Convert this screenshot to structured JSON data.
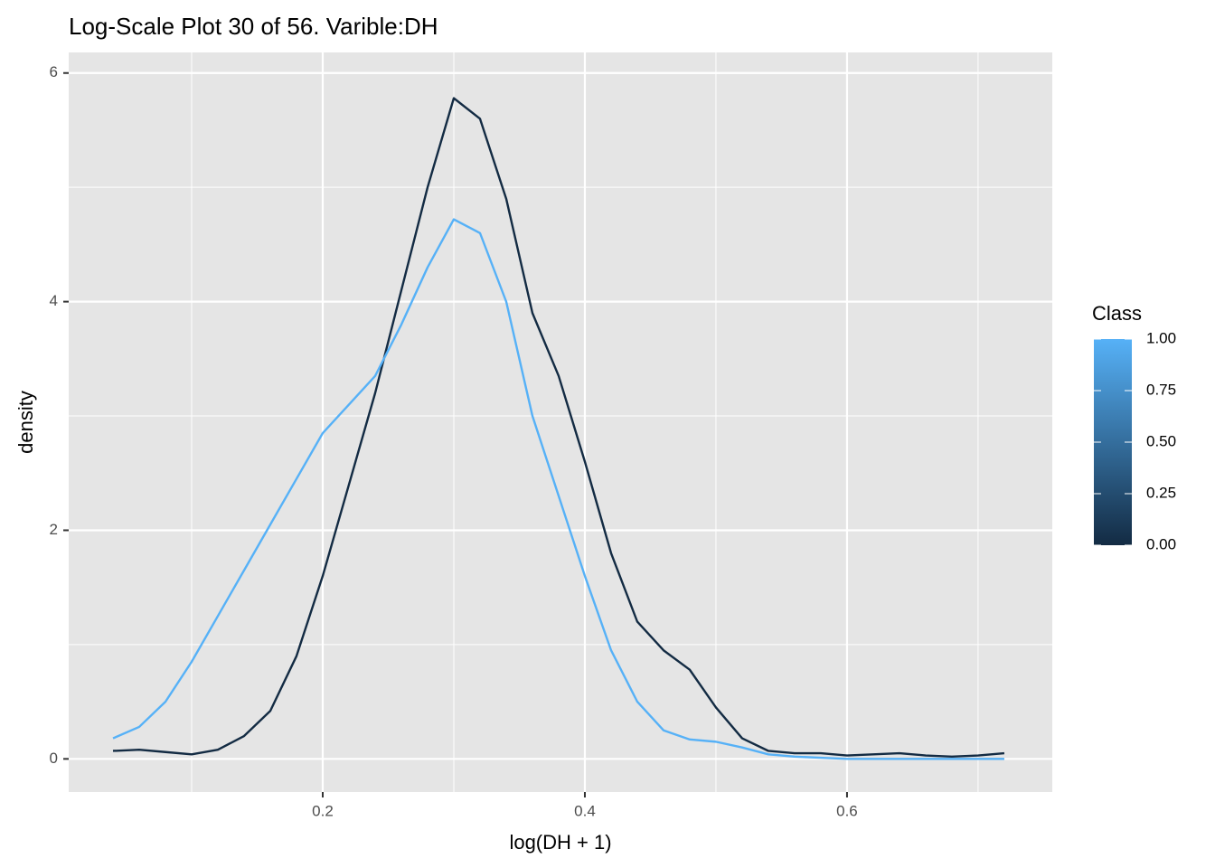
{
  "chart_data": {
    "type": "line",
    "title": "Log-Scale Plot 30 of 56. Varible:DH",
    "x_label": "log(DH + 1)",
    "y_label": "density",
    "x": [
      0.04,
      0.06,
      0.08,
      0.1,
      0.12,
      0.14,
      0.16,
      0.18,
      0.2,
      0.22,
      0.24,
      0.26,
      0.28,
      0.3,
      0.32,
      0.34,
      0.36,
      0.38,
      0.4,
      0.42,
      0.44,
      0.46,
      0.48,
      0.5,
      0.52,
      0.54,
      0.56,
      0.58,
      0.6,
      0.62,
      0.64,
      0.66,
      0.68,
      0.7,
      0.72
    ],
    "series": [
      {
        "color": "#132B43",
        "values": [
          0.07,
          0.08,
          0.06,
          0.04,
          0.08,
          0.2,
          0.42,
          0.9,
          1.6,
          2.4,
          3.2,
          4.1,
          5.0,
          5.78,
          5.6,
          4.9,
          3.9,
          3.35,
          2.6,
          1.8,
          1.2,
          0.95,
          0.78,
          0.45,
          0.18,
          0.07,
          0.05,
          0.05,
          0.03,
          0.04,
          0.05,
          0.03,
          0.02,
          0.03,
          0.05
        ]
      },
      {
        "color": "#56B1F7",
        "values": [
          0.18,
          0.28,
          0.5,
          0.85,
          1.25,
          1.65,
          2.05,
          2.45,
          2.85,
          3.1,
          3.35,
          3.8,
          4.3,
          4.72,
          4.6,
          4.0,
          3.0,
          2.3,
          1.6,
          0.95,
          0.5,
          0.25,
          0.17,
          0.15,
          0.1,
          0.04,
          0.02,
          0.01,
          0,
          0,
          0,
          0,
          0,
          0,
          0
        ]
      }
    ],
    "xlim": [
      0.0062,
      0.7566
    ],
    "ylim": [
      -0.29,
      6.18
    ],
    "xticks": [
      0.2,
      0.4,
      0.6
    ],
    "yticks": [
      0,
      2,
      4,
      6
    ],
    "x_minor_grid": [
      0.1,
      0.3,
      0.5,
      0.7
    ],
    "y_minor_grid": [
      1,
      3,
      5
    ],
    "grid": true,
    "legend": {
      "title": "Class",
      "colors": [
        "#132B43",
        "#56B1F7"
      ],
      "ticks": [
        {
          "value": 0,
          "label": "0.00"
        },
        {
          "value": 0.25,
          "label": "0.25"
        },
        {
          "value": 0.5,
          "label": "0.50"
        },
        {
          "value": 0.75,
          "label": "0.75"
        },
        {
          "value": 1,
          "label": "1.00"
        }
      ]
    }
  }
}
